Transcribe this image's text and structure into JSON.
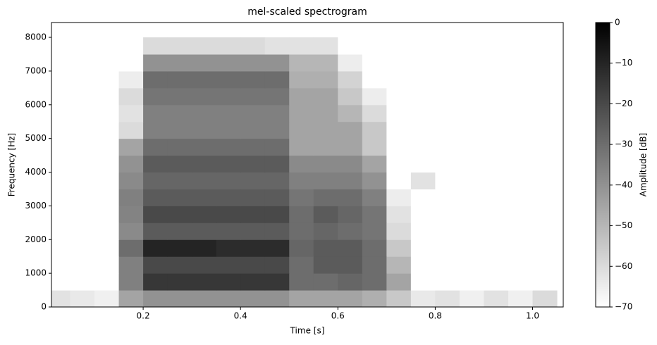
{
  "chart_data": {
    "type": "heatmap",
    "title": "mel-scaled spectrogram",
    "x_label": "Time [s]",
    "y_label": "Frequency [Hz]",
    "x": [
      0,
      0.05,
      0.1,
      0.15,
      0.2,
      0.25,
      0.3,
      0.35,
      0.4,
      0.45,
      0.5,
      0.55,
      0.6,
      0.65,
      0.7,
      0.75,
      0.8,
      0.85,
      0.9,
      0.95,
      1.0,
      1.05
    ],
    "y": [
      0,
      500,
      1000,
      1500,
      2000,
      2500,
      3000,
      3500,
      4000,
      4500,
      5000,
      5500,
      6000,
      6500,
      7000,
      7500,
      8000
    ],
    "z": [
      [
        -62,
        -64,
        -66,
        -45,
        -40,
        -40,
        -40,
        -40,
        -40,
        -40,
        -45,
        -45,
        -45,
        -48,
        -55,
        -64,
        -62,
        -66,
        -62,
        -66,
        -60
      ],
      [
        -70,
        -70,
        -70,
        -35,
        -15,
        -15,
        -15,
        -15,
        -15,
        -15,
        -30,
        -30,
        -28,
        -30,
        -45,
        -70,
        -70,
        -70,
        -70,
        -70,
        -70
      ],
      [
        -70,
        -70,
        -70,
        -35,
        -20,
        -20,
        -20,
        -20,
        -20,
        -20,
        -30,
        -25,
        -25,
        -30,
        -50,
        -70,
        -70,
        -70,
        -70,
        -70,
        -70
      ],
      [
        -70,
        -70,
        -70,
        -30,
        -10,
        -10,
        -10,
        -12,
        -12,
        -12,
        -28,
        -25,
        -25,
        -30,
        -55,
        -70,
        -70,
        -70,
        -70,
        -70,
        -70
      ],
      [
        -70,
        -70,
        -70,
        -38,
        -25,
        -25,
        -25,
        -25,
        -25,
        -25,
        -30,
        -28,
        -30,
        -32,
        -60,
        -70,
        -70,
        -70,
        -70,
        -70,
        -70
      ],
      [
        -70,
        -70,
        -70,
        -36,
        -20,
        -20,
        -20,
        -20,
        -20,
        -20,
        -30,
        -25,
        -28,
        -32,
        -62,
        -70,
        -70,
        -70,
        -70,
        -70,
        -70
      ],
      [
        -70,
        -70,
        -70,
        -35,
        -25,
        -25,
        -25,
        -25,
        -25,
        -25,
        -32,
        -30,
        -30,
        -35,
        -65,
        -70,
        -70,
        -70,
        -70,
        -70,
        -70
      ],
      [
        -70,
        -70,
        -70,
        -38,
        -28,
        -28,
        -28,
        -28,
        -28,
        -28,
        -35,
        -35,
        -35,
        -40,
        -70,
        -62,
        -70,
        -70,
        -70,
        -70,
        -70
      ],
      [
        -70,
        -70,
        -70,
        -40,
        -25,
        -25,
        -25,
        -25,
        -25,
        -25,
        -38,
        -38,
        -38,
        -45,
        -70,
        -70,
        -70,
        -70,
        -70,
        -70,
        -70
      ],
      [
        -70,
        -70,
        -70,
        -45,
        -30,
        -30,
        -30,
        -30,
        -30,
        -30,
        -45,
        -45,
        -45,
        -55,
        -70,
        -70,
        -70,
        -70,
        -70,
        -70,
        -70
      ],
      [
        -70,
        -70,
        -70,
        -60,
        -35,
        -35,
        -35,
        -35,
        -35,
        -35,
        -45,
        -45,
        -45,
        -55,
        -70,
        -70,
        -70,
        -70,
        -70,
        -70,
        -70
      ],
      [
        -70,
        -70,
        -70,
        -62,
        -35,
        -35,
        -35,
        -35,
        -35,
        -35,
        -45,
        -45,
        -50,
        -60,
        -70,
        -70,
        -70,
        -70,
        -70,
        -70,
        -70
      ],
      [
        -70,
        -70,
        -70,
        -60,
        -32,
        -32,
        -32,
        -32,
        -32,
        -32,
        -45,
        -45,
        -55,
        -65,
        -70,
        -70,
        -70,
        -70,
        -70,
        -70,
        -70
      ],
      [
        -70,
        -70,
        -70,
        -65,
        -30,
        -30,
        -30,
        -30,
        -30,
        -30,
        -48,
        -48,
        -58,
        -70,
        -70,
        -70,
        -70,
        -70,
        -70,
        -70,
        -70
      ],
      [
        -70,
        -70,
        -70,
        -70,
        -40,
        -40,
        -40,
        -40,
        -40,
        -40,
        -50,
        -50,
        -65,
        -70,
        -70,
        -70,
        -70,
        -70,
        -70,
        -70,
        -70
      ],
      [
        -70,
        -70,
        -70,
        -70,
        -60,
        -60,
        -60,
        -60,
        -60,
        -62,
        -62,
        -62,
        -70,
        -70,
        -70,
        -70,
        -70,
        -70,
        -70,
        -70,
        -70
      ]
    ],
    "xlim": [
      0.0116,
      1.063
    ],
    "ylim": [
      0,
      8440
    ],
    "xticks": [
      0.2,
      0.4,
      0.6,
      0.8,
      {
        "value": 1,
        "label": "1.0"
      }
    ],
    "yticks": [
      0,
      1000,
      2000,
      3000,
      4000,
      5000,
      6000,
      7000,
      8000
    ],
    "colormap": [
      "#ffffff",
      "#000000"
    ],
    "colorbar": {
      "label": "Amplitude [dB]",
      "lim": [
        -70,
        0
      ],
      "ticks": [
        0,
        {
          "value": -10,
          "label": "−10"
        },
        {
          "value": -20,
          "label": "−20"
        },
        {
          "value": -30,
          "label": "−30"
        },
        {
          "value": -40,
          "label": "−40"
        },
        {
          "value": -50,
          "label": "−50"
        },
        {
          "value": -60,
          "label": "−60"
        },
        {
          "value": -70,
          "label": "−70"
        }
      ]
    }
  }
}
